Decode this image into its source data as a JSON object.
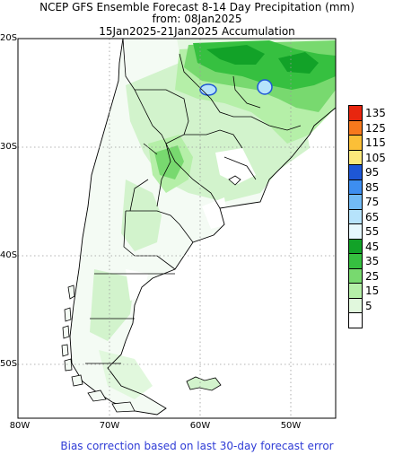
{
  "title": {
    "line1": "NCEP GFS Ensemble Forecast 8-14 Day Precipitation (mm)",
    "line2": "from: 08Jan2025",
    "line3": "15Jan2025-21Jan2025 Accumulation"
  },
  "map": {
    "lat_labels": [
      "20S",
      "30S",
      "40S",
      "50S"
    ],
    "lon_labels": [
      "80W",
      "70W",
      "60W",
      "50W"
    ],
    "ocean_color": "#ffffff",
    "land_color": "#f3fbf3"
  },
  "legend": {
    "items": [
      {
        "label": "135",
        "color": "#e8260f"
      },
      {
        "label": "125",
        "color": "#f7791d"
      },
      {
        "label": "115",
        "color": "#fbbf37"
      },
      {
        "label": "105",
        "color": "#fce97b"
      },
      {
        "label": "95",
        "color": "#1e57d6"
      },
      {
        "label": "85",
        "color": "#3d8ef0"
      },
      {
        "label": "75",
        "color": "#72bbf6"
      },
      {
        "label": "65",
        "color": "#b6e3fb"
      },
      {
        "label": "55",
        "color": "#e5f8fd"
      },
      {
        "label": "45",
        "color": "#12a228"
      },
      {
        "label": "35",
        "color": "#36c040"
      },
      {
        "label": "25",
        "color": "#78d96f"
      },
      {
        "label": "15",
        "color": "#b5efa8"
      },
      {
        "label": "5",
        "color": "#e1f8dd"
      },
      {
        "label": "",
        "color": "#ffffff"
      }
    ]
  },
  "footer": "Bias correction based on last 30-day forecast error"
}
